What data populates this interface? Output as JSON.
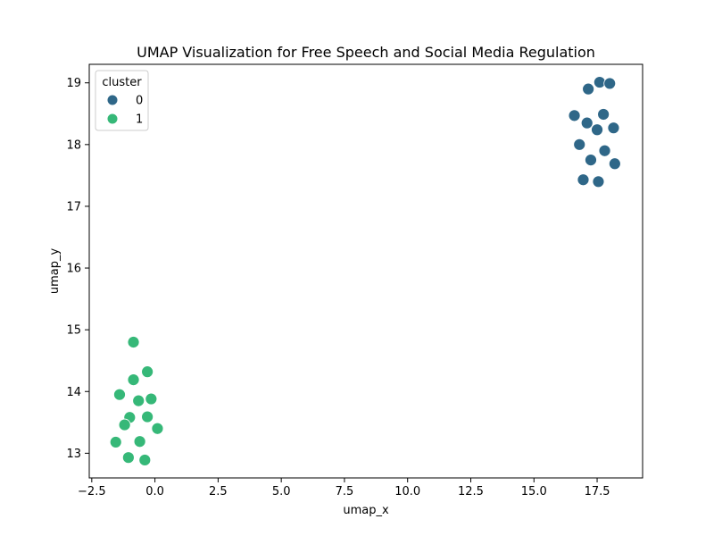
{
  "chart_data": {
    "type": "scatter",
    "title": "UMAP Visualization for Free Speech and Social Media Regulation",
    "xlabel": "umap_x",
    "ylabel": "umap_y",
    "xlim": [
      -2.6,
      19.3
    ],
    "ylim": [
      12.6,
      19.3
    ],
    "x_ticks": [
      -2.5,
      0.0,
      2.5,
      5.0,
      7.5,
      10.0,
      12.5,
      15.0,
      17.5
    ],
    "x_tick_labels": [
      "−2.5",
      "0.0",
      "2.5",
      "5.0",
      "7.5",
      "10.0",
      "12.5",
      "15.0",
      "17.5"
    ],
    "y_ticks": [
      13,
      14,
      15,
      16,
      17,
      18,
      19
    ],
    "y_tick_labels": [
      "13",
      "14",
      "15",
      "16",
      "17",
      "18",
      "19"
    ],
    "grid": false,
    "legend": {
      "title": "cluster",
      "placement": "top-left"
    },
    "series": [
      {
        "name": "0",
        "color": "#2f6788",
        "points": [
          {
            "x": 17.6,
            "y": 19.01
          },
          {
            "x": 18.0,
            "y": 18.99
          },
          {
            "x": 17.15,
            "y": 18.9
          },
          {
            "x": 16.6,
            "y": 18.47
          },
          {
            "x": 17.75,
            "y": 18.49
          },
          {
            "x": 17.1,
            "y": 18.35
          },
          {
            "x": 17.5,
            "y": 18.24
          },
          {
            "x": 18.15,
            "y": 18.27
          },
          {
            "x": 16.8,
            "y": 18.0
          },
          {
            "x": 17.8,
            "y": 17.9
          },
          {
            "x": 17.25,
            "y": 17.75
          },
          {
            "x": 18.2,
            "y": 17.69
          },
          {
            "x": 16.95,
            "y": 17.43
          },
          {
            "x": 17.55,
            "y": 17.4
          }
        ]
      },
      {
        "name": "1",
        "color": "#36b878",
        "points": [
          {
            "x": -0.85,
            "y": 14.8
          },
          {
            "x": -0.3,
            "y": 14.32
          },
          {
            "x": -0.85,
            "y": 14.19
          },
          {
            "x": -1.4,
            "y": 13.95
          },
          {
            "x": -0.65,
            "y": 13.85
          },
          {
            "x": -0.15,
            "y": 13.88
          },
          {
            "x": -1.0,
            "y": 13.58
          },
          {
            "x": -0.3,
            "y": 13.59
          },
          {
            "x": -1.2,
            "y": 13.46
          },
          {
            "x": 0.1,
            "y": 13.4
          },
          {
            "x": -1.55,
            "y": 13.18
          },
          {
            "x": -0.6,
            "y": 13.19
          },
          {
            "x": -1.05,
            "y": 12.93
          },
          {
            "x": -0.4,
            "y": 12.89
          }
        ]
      }
    ]
  }
}
